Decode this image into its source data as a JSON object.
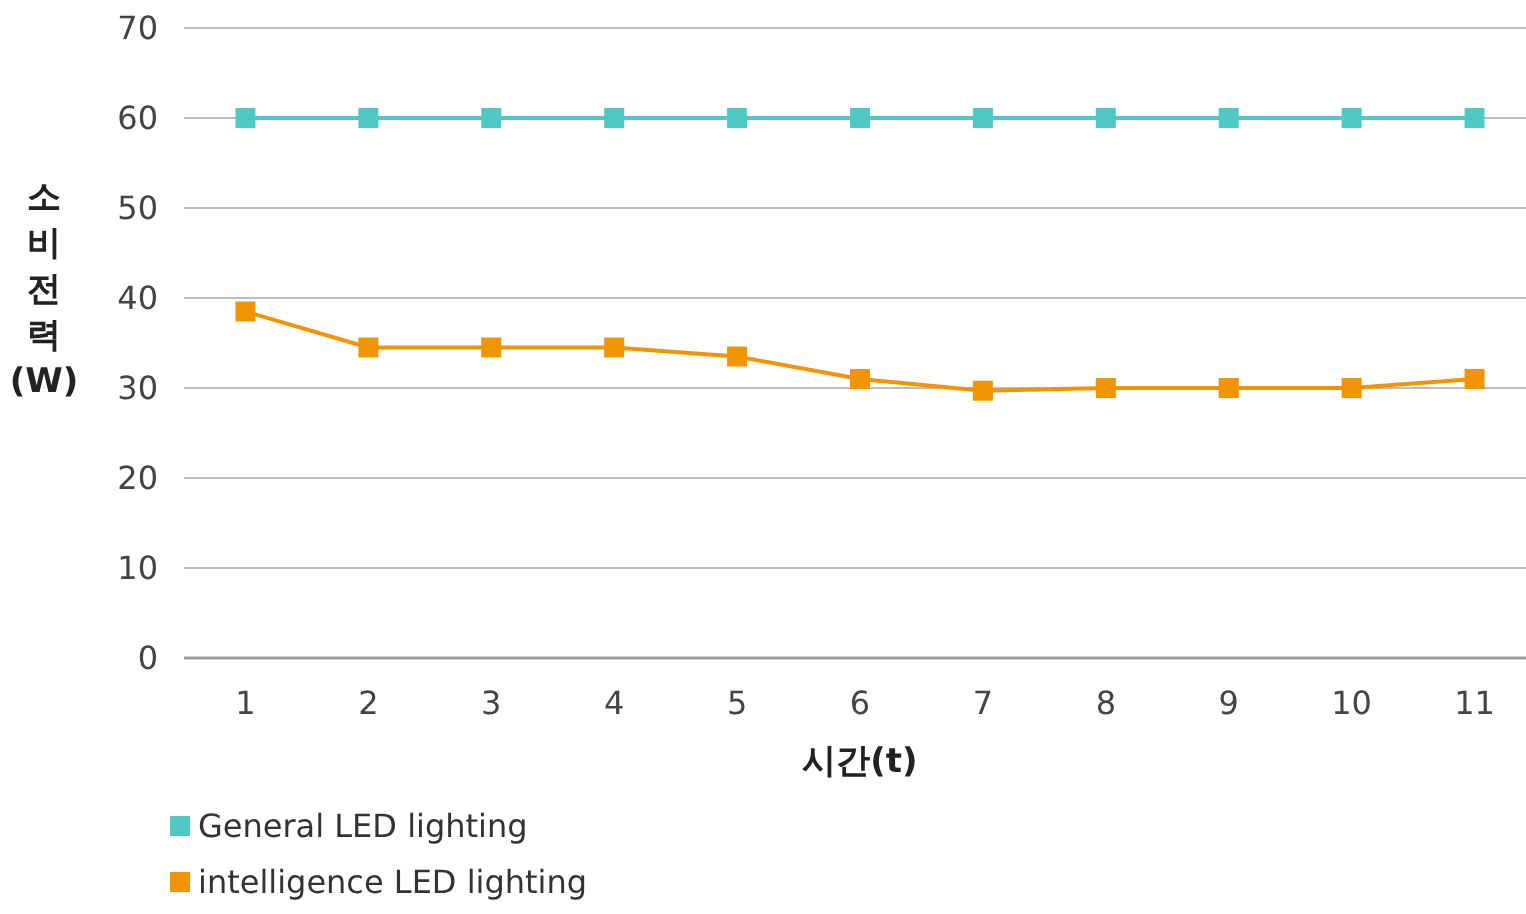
{
  "chart_data": {
    "type": "line",
    "xlabel": "시간(t)",
    "ylabel": "소비전력(W)",
    "categories": [
      "1",
      "2",
      "3",
      "4",
      "5",
      "6",
      "7",
      "8",
      "9",
      "10",
      "11"
    ],
    "series": [
      {
        "name": "General LED lighting",
        "color": "#4ec9c6",
        "values": [
          60,
          60,
          60,
          60,
          60,
          60,
          60,
          60,
          60,
          60,
          60
        ]
      },
      {
        "name": "intelligence LED lighting",
        "color": "#f29400",
        "values": [
          38.5,
          34.5,
          34.5,
          34.5,
          33.5,
          31,
          29.7,
          30,
          30,
          30,
          31
        ]
      }
    ],
    "ylim": [
      0,
      70
    ],
    "yticks": [
      0,
      10,
      20,
      30,
      40,
      50,
      60,
      70
    ],
    "grid": "y",
    "legend": "bottom left",
    "marker": "square",
    "line_style": "solid"
  }
}
